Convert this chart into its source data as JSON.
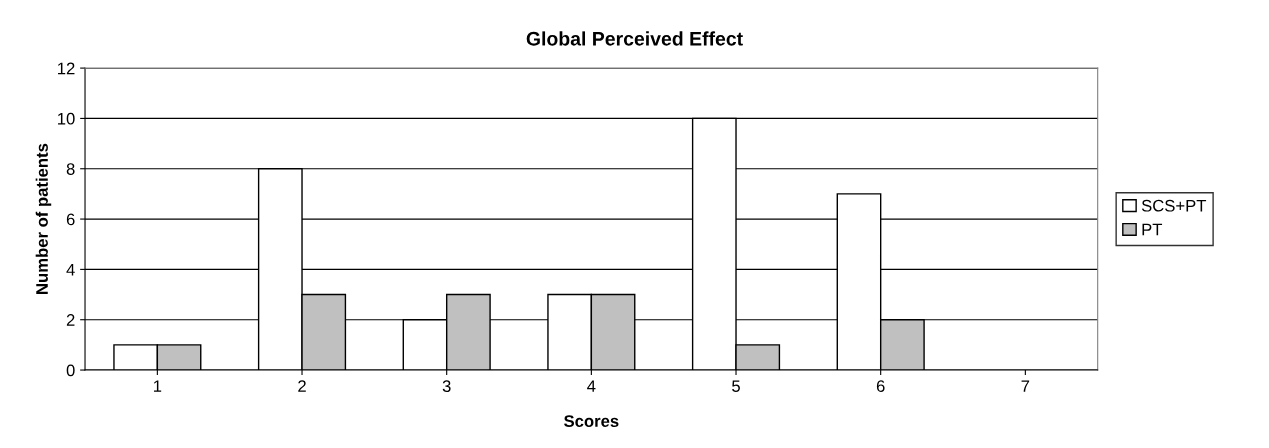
{
  "chart_data": {
    "type": "bar",
    "title": "Global Perceived Effect",
    "xlabel": "Scores",
    "ylabel": "Number of patients",
    "categories": [
      "1",
      "2",
      "3",
      "4",
      "5",
      "6",
      "7"
    ],
    "series": [
      {
        "name": "SCS+PT",
        "color": "#ffffff",
        "values": [
          1,
          8,
          2,
          3,
          10,
          7,
          0
        ]
      },
      {
        "name": "PT",
        "color": "#c0c0c0",
        "values": [
          1,
          3,
          3,
          3,
          1,
          2,
          0
        ]
      }
    ],
    "ylim": [
      0,
      12
    ],
    "yticks": [
      0,
      2,
      4,
      6,
      8,
      10,
      12
    ],
    "grid": "y",
    "legend": "right"
  }
}
